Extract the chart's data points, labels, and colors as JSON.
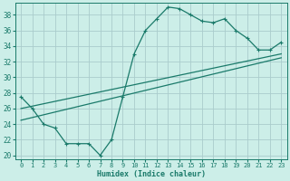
{
  "xlabel": "Humidex (Indice chaleur)",
  "bg_color": "#cceee8",
  "grid_color": "#aacccc",
  "line_color": "#1a7a6a",
  "xlim": [
    -0.5,
    23.5
  ],
  "ylim": [
    19.5,
    39.5
  ],
  "yticks": [
    20,
    22,
    24,
    26,
    28,
    30,
    32,
    34,
    36,
    38
  ],
  "xticks": [
    0,
    1,
    2,
    3,
    4,
    5,
    6,
    7,
    8,
    9,
    10,
    11,
    12,
    13,
    14,
    15,
    16,
    17,
    18,
    19,
    20,
    21,
    22,
    23
  ],
  "series1_x": [
    0,
    1,
    2,
    3,
    4,
    5,
    6,
    7,
    8,
    9,
    10,
    11,
    12,
    13,
    14,
    15,
    16,
    17,
    18,
    19,
    20,
    21,
    22,
    23
  ],
  "series1_y": [
    27.5,
    26.0,
    24.0,
    23.5,
    21.5,
    21.5,
    21.5,
    20.0,
    22.0,
    27.5,
    33.0,
    36.0,
    37.5,
    39.0,
    38.8,
    38.0,
    37.2,
    37.0,
    37.5,
    36.0,
    35.0,
    33.5,
    33.5,
    34.5
  ],
  "series2_x": [
    0,
    23
  ],
  "series2_y": [
    24.5,
    32.5
  ],
  "series3_x": [
    0,
    23
  ],
  "series3_y": [
    26.0,
    33.0
  ]
}
